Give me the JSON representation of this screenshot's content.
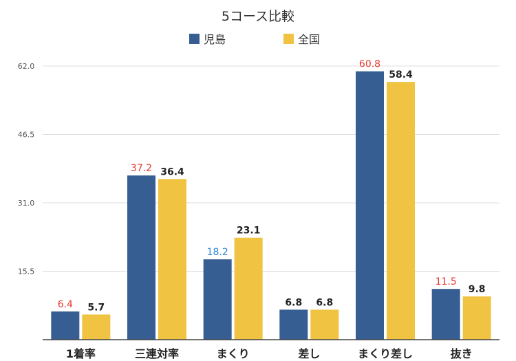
{
  "chart_data": {
    "type": "bar",
    "title": "5コース比較",
    "categories": [
      "1着率",
      "三連対率",
      "まくり",
      "差し",
      "まくり差し",
      "抜き"
    ],
    "series": [
      {
        "name": "児島",
        "color": "#365e92",
        "values": [
          6.4,
          37.2,
          18.2,
          6.8,
          60.8,
          11.5
        ],
        "label_colors": [
          "#e8382d",
          "#e8382d",
          "#2b86d6",
          "#222222",
          "#e8382d",
          "#e8382d"
        ]
      },
      {
        "name": "全国",
        "color": "#f0c342",
        "values": [
          5.7,
          36.4,
          23.1,
          6.8,
          58.4,
          9.8
        ],
        "label_colors": [
          "#222222",
          "#222222",
          "#222222",
          "#222222",
          "#222222",
          "#222222"
        ]
      }
    ],
    "yticks": [
      "15.5",
      "31.0",
      "46.5",
      "62.0"
    ],
    "ylim": [
      0,
      62
    ],
    "grid": true,
    "legend_position": "top-center",
    "xlabel": "",
    "ylabel": ""
  }
}
